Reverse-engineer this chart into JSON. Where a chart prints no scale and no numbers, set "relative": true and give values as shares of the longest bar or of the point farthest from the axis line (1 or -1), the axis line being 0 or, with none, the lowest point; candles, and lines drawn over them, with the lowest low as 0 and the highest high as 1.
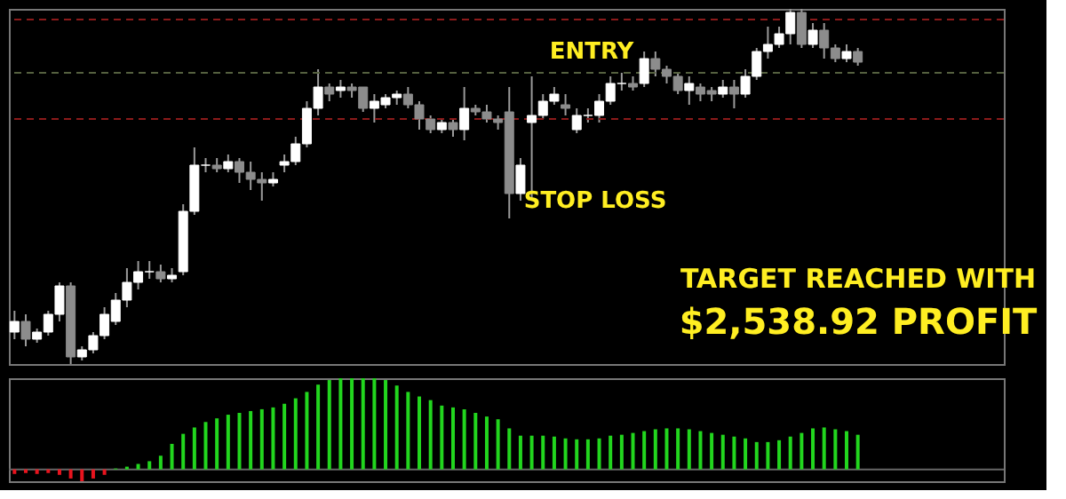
{
  "chart_data": [
    {
      "type": "candlestick",
      "relative": true,
      "tick_labels": false,
      "categories": [
        null,
        null,
        null,
        null,
        null,
        null,
        null,
        null,
        null,
        null,
        null,
        null,
        null,
        null,
        null,
        null,
        null,
        null,
        null,
        null,
        null,
        null,
        null,
        null,
        null,
        null,
        null,
        null,
        null,
        null,
        null,
        null,
        null,
        null,
        null,
        null,
        null,
        null,
        null,
        null,
        null,
        null,
        null,
        null,
        null,
        null,
        null,
        null,
        null,
        null,
        null,
        null,
        null,
        null,
        null,
        null,
        null,
        null,
        null,
        null,
        null,
        null,
        null,
        null,
        null,
        null,
        null,
        null,
        null,
        null,
        null,
        null,
        null,
        null,
        null,
        null
      ],
      "ohlc": [
        [
          0.09,
          0.15,
          0.07,
          0.12
        ],
        [
          0.12,
          0.14,
          0.05,
          0.07
        ],
        [
          0.07,
          0.1,
          0.06,
          0.09
        ],
        [
          0.09,
          0.15,
          0.08,
          0.14
        ],
        [
          0.14,
          0.23,
          0.12,
          0.22
        ],
        [
          0.22,
          0.23,
          0,
          0.02
        ],
        [
          0.02,
          0.05,
          0.01,
          0.04
        ],
        [
          0.04,
          0.09,
          0.03,
          0.08
        ],
        [
          0.08,
          0.16,
          0.07,
          0.14
        ],
        [
          0.12,
          0.2,
          0.11,
          0.18
        ],
        [
          0.18,
          0.27,
          0.16,
          0.23
        ],
        [
          0.23,
          0.29,
          0.21,
          0.26
        ],
        [
          0.26,
          0.29,
          0.24,
          0.26
        ],
        [
          0.26,
          0.28,
          0.23,
          0.24
        ],
        [
          0.24,
          0.27,
          0.23,
          0.25
        ],
        [
          0.26,
          0.45,
          0.25,
          0.43
        ],
        [
          0.43,
          0.61,
          0.42,
          0.56
        ],
        [
          0.56,
          0.58,
          0.54,
          0.56
        ],
        [
          0.56,
          0.58,
          0.54,
          0.55
        ],
        [
          0.55,
          0.59,
          0.54,
          0.57
        ],
        [
          0.57,
          0.58,
          0.51,
          0.54
        ],
        [
          0.54,
          0.57,
          0.49,
          0.52
        ],
        [
          0.52,
          0.54,
          0.46,
          0.51
        ],
        [
          0.51,
          0.54,
          0.5,
          0.52
        ],
        [
          0.56,
          0.59,
          0.54,
          0.57
        ],
        [
          0.57,
          0.64,
          0.56,
          0.62
        ],
        [
          0.62,
          0.74,
          0.61,
          0.72
        ],
        [
          0.72,
          0.83,
          0.7,
          0.78
        ],
        [
          0.78,
          0.79,
          0.74,
          0.76
        ],
        [
          0.77,
          0.8,
          0.75,
          0.78
        ],
        [
          0.78,
          0.79,
          0.75,
          0.77
        ],
        [
          0.78,
          0.78,
          0.71,
          0.72
        ],
        [
          0.72,
          0.76,
          0.68,
          0.74
        ],
        [
          0.73,
          0.76,
          0.72,
          0.75
        ],
        [
          0.75,
          0.77,
          0.73,
          0.76
        ],
        [
          0.76,
          0.78,
          0.72,
          0.73
        ],
        [
          0.73,
          0.74,
          0.66,
          0.69
        ],
        [
          0.69,
          0.7,
          0.65,
          0.66
        ],
        [
          0.66,
          0.69,
          0.65,
          0.68
        ],
        [
          0.68,
          0.69,
          0.64,
          0.66
        ],
        [
          0.66,
          0.78,
          0.63,
          0.72
        ],
        [
          0.72,
          0.73,
          0.7,
          0.71
        ],
        [
          0.71,
          0.73,
          0.68,
          0.69
        ],
        [
          0.69,
          0.7,
          0.66,
          0.68
        ],
        [
          0.71,
          0.78,
          0.41,
          0.48
        ],
        [
          0.48,
          0.58,
          0.46,
          0.56
        ],
        [
          0.68,
          0.81,
          0.46,
          0.7
        ],
        [
          0.7,
          0.76,
          0.69,
          0.74
        ],
        [
          0.74,
          0.78,
          0.73,
          0.76
        ],
        [
          0.73,
          0.76,
          0.7,
          0.72
        ],
        [
          0.66,
          0.72,
          0.65,
          0.7
        ],
        [
          0.7,
          0.72,
          0.68,
          0.7
        ],
        [
          0.7,
          0.76,
          0.68,
          0.74
        ],
        [
          0.74,
          0.81,
          0.73,
          0.79
        ],
        [
          0.79,
          0.82,
          0.77,
          0.79
        ],
        [
          0.79,
          0.81,
          0.77,
          0.78
        ],
        [
          0.79,
          0.88,
          0.78,
          0.86
        ],
        [
          0.86,
          0.88,
          0.81,
          0.83
        ],
        [
          0.83,
          0.84,
          0.79,
          0.81
        ],
        [
          0.81,
          0.82,
          0.76,
          0.77
        ],
        [
          0.77,
          0.81,
          0.73,
          0.79
        ],
        [
          0.78,
          0.79,
          0.74,
          0.76
        ],
        [
          0.77,
          0.78,
          0.74,
          0.76
        ],
        [
          0.76,
          0.8,
          0.75,
          0.78
        ],
        [
          0.78,
          0.8,
          0.72,
          0.76
        ],
        [
          0.76,
          0.83,
          0.75,
          0.81
        ],
        [
          0.81,
          0.89,
          0.8,
          0.88
        ],
        [
          0.88,
          0.95,
          0.86,
          0.9
        ],
        [
          0.9,
          0.95,
          0.89,
          0.93
        ],
        [
          0.93,
          1,
          0.9,
          0.99
        ],
        [
          0.99,
          1,
          0.89,
          0.9
        ],
        [
          0.9,
          0.96,
          0.89,
          0.94
        ],
        [
          0.94,
          0.96,
          0.86,
          0.89
        ],
        [
          0.89,
          0.9,
          0.85,
          0.86
        ],
        [
          0.86,
          0.9,
          0.85,
          0.88
        ],
        [
          0.88,
          0.89,
          0.84,
          0.85
        ]
      ],
      "colors": [
        "#ffffff",
        "#8c8c8c",
        "#ffffff",
        "#ffffff",
        "#ffffff",
        "#8c8c8c",
        "#ffffff",
        "#ffffff",
        "#ffffff",
        "#ffffff",
        "#ffffff",
        "#ffffff",
        "#ffffff",
        "#8c8c8c",
        "#ffffff",
        "#ffffff",
        "#ffffff",
        "#ffffff",
        "#8c8c8c",
        "#ffffff",
        "#8c8c8c",
        "#8c8c8c",
        "#8c8c8c",
        "#ffffff",
        "#ffffff",
        "#ffffff",
        "#ffffff",
        "#ffffff",
        "#8c8c8c",
        "#ffffff",
        "#8c8c8c",
        "#8c8c8c",
        "#ffffff",
        "#ffffff",
        "#ffffff",
        "#8c8c8c",
        "#8c8c8c",
        "#8c8c8c",
        "#ffffff",
        "#8c8c8c",
        "#ffffff",
        "#8c8c8c",
        "#8c8c8c",
        "#8c8c8c",
        "#8c8c8c",
        "#ffffff",
        "#ffffff",
        "#ffffff",
        "#ffffff",
        "#8c8c8c",
        "#ffffff",
        "#ffffff",
        "#ffffff",
        "#ffffff",
        "#ffffff",
        "#8c8c8c",
        "#ffffff",
        "#8c8c8c",
        "#8c8c8c",
        "#8c8c8c",
        "#ffffff",
        "#8c8c8c",
        "#8c8c8c",
        "#ffffff",
        "#8c8c8c",
        "#ffffff",
        "#ffffff",
        "#ffffff",
        "#ffffff",
        "#ffffff",
        "#8c8c8c",
        "#ffffff",
        "#8c8c8c",
        "#8c8c8c",
        "#ffffff",
        "#8c8c8c"
      ],
      "ref_lines": [
        {
          "axis": "y",
          "value": 0.97,
          "color": "#8b1a1a",
          "line_style": "dashed"
        },
        {
          "axis": "y",
          "value": 0.82,
          "color": "#55603f",
          "line_style": "dashed"
        },
        {
          "axis": "y",
          "value": 0.69,
          "color": "#8b1a1a",
          "line_style": "dashed"
        }
      ],
      "annotations": [
        "ENTRY",
        "STOP LOSS",
        "TARGET REACHED WITH",
        "$2,538.92 PROFIT"
      ]
    },
    {
      "type": "bar",
      "relative": true,
      "tick_labels": false,
      "categories": [
        null,
        null,
        null,
        null,
        null,
        null,
        null,
        null,
        null,
        null,
        null,
        null,
        null,
        null,
        null,
        null,
        null,
        null,
        null,
        null,
        null,
        null,
        null,
        null,
        null,
        null,
        null,
        null,
        null,
        null,
        null,
        null,
        null,
        null,
        null,
        null,
        null,
        null,
        null,
        null,
        null,
        null,
        null,
        null,
        null,
        null,
        null,
        null,
        null,
        null,
        null,
        null,
        null,
        null,
        null,
        null,
        null,
        null,
        null,
        null,
        null,
        null,
        null,
        null,
        null,
        null,
        null,
        null,
        null,
        null,
        null,
        null,
        null,
        null,
        null,
        null
      ],
      "series": [
        {
          "color": "#e8141e",
          "values": [
            -0.05,
            -0.04,
            -0.05,
            -0.04,
            -0.06,
            -0.1,
            -0.13,
            -0.1,
            -0.06,
            null,
            null,
            null,
            null,
            null,
            null,
            null,
            null,
            null,
            null,
            null,
            null,
            null,
            null,
            null,
            null,
            null,
            null,
            null,
            null,
            null,
            null,
            null,
            null,
            null,
            null,
            null,
            null,
            null,
            null,
            null,
            null,
            null,
            null,
            null,
            null,
            null,
            null,
            null,
            null,
            null,
            null,
            null,
            null,
            null,
            null,
            null,
            null,
            null,
            null,
            null,
            null,
            null,
            null,
            null,
            null,
            null,
            null,
            null,
            null,
            null,
            null,
            null,
            null,
            null,
            null,
            null
          ]
        },
        {
          "color": "#22d61e",
          "values": [
            null,
            null,
            null,
            null,
            null,
            null,
            null,
            null,
            null,
            0.01,
            0.03,
            0.06,
            0.09,
            0.15,
            0.28,
            0.39,
            0.46,
            0.52,
            0.56,
            0.6,
            0.62,
            0.64,
            0.66,
            0.68,
            0.72,
            0.78,
            0.85,
            0.93,
            0.98,
            1,
            1,
            1,
            1,
            0.98,
            0.92,
            0.85,
            0.8,
            0.76,
            0.7,
            0.68,
            0.66,
            0.62,
            0.58,
            0.55,
            0.45,
            0.37,
            0.37,
            0.37,
            0.36,
            0.34,
            0.33,
            0.33,
            0.34,
            0.37,
            0.38,
            0.4,
            0.42,
            0.44,
            0.45,
            0.45,
            0.44,
            0.42,
            0.4,
            0.38,
            0.36,
            0.34,
            0.3,
            0.3,
            0.32,
            0.36,
            0.4,
            0.45,
            0.46,
            0.44,
            0.42,
            0.38
          ]
        }
      ]
    }
  ]
}
